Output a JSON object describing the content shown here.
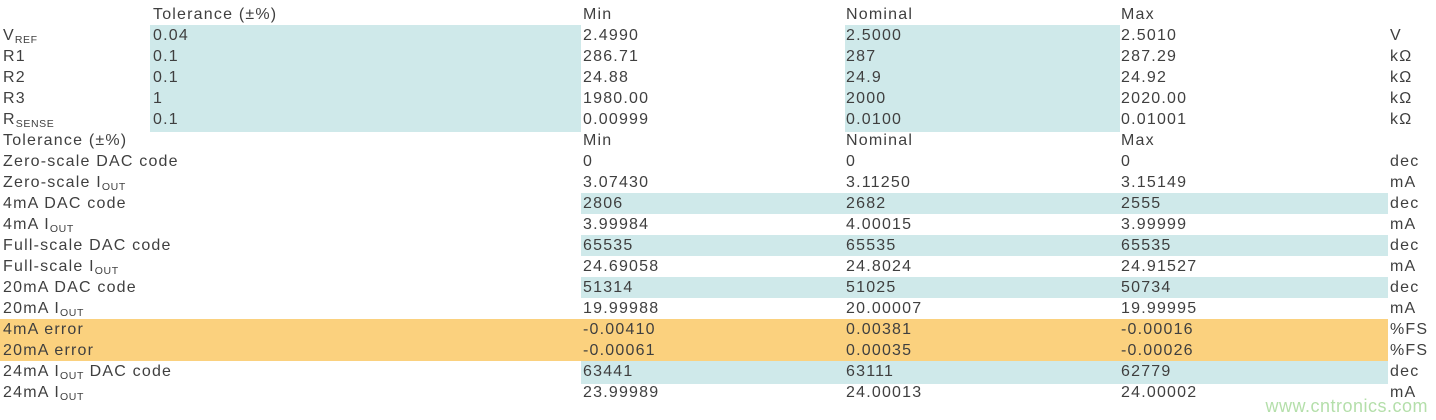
{
  "colors": {
    "highlight-blue": "#cfe9ea",
    "highlight-orange": "#fbd17e",
    "text": "#3f3f3f",
    "watermark-green": "#b4dfaa",
    "background": "#ffffff"
  },
  "watermark": "www.cntronics.com",
  "table": {
    "rows": [
      {
        "label": "",
        "tolerance": "Tolerance (±%)",
        "min": "Min",
        "nominal": "Nominal",
        "max": "Max",
        "unit": ""
      },
      {
        "label_pre": "V",
        "label_sub": "REF",
        "label_post": "",
        "tolerance": "0.04",
        "min": "2.4990",
        "nominal": "2.5000",
        "max": "2.5010",
        "unit": "V"
      },
      {
        "label": "R1",
        "tolerance": "0.1",
        "min": "286.71",
        "nominal": "287",
        "max": "287.29",
        "unit": "kΩ"
      },
      {
        "label": "R2",
        "tolerance": "0.1",
        "min": "24.88",
        "nominal": "24.9",
        "max": "24.92",
        "unit": "kΩ"
      },
      {
        "label": "R3",
        "tolerance": "1",
        "min": "1980.00",
        "nominal": "2000",
        "max": "2020.00",
        "unit": "kΩ"
      },
      {
        "label_pre": "R",
        "label_sub": "SENSE",
        "label_post": "",
        "tolerance": "0.1",
        "min": "0.00999",
        "nominal": "0.0100",
        "max": "0.01001",
        "unit": "kΩ"
      },
      {
        "label": "Tolerance (±%)",
        "tolerance": "",
        "min": "Min",
        "nominal": "Nominal",
        "max": "Max",
        "unit": ""
      },
      {
        "label": "Zero-scale DAC code",
        "tolerance": "",
        "min": "0",
        "nominal": "0",
        "max": "0",
        "unit": "dec"
      },
      {
        "label_pre": "Zero-scale I",
        "label_sub": "OUT",
        "label_post": "",
        "tolerance": "",
        "min": "3.07430",
        "nominal": "3.11250",
        "max": "3.15149",
        "unit": "mA"
      },
      {
        "label": "4mA DAC code",
        "tolerance": "",
        "min": "2806",
        "nominal": "2682",
        "max": "2555",
        "unit": "dec"
      },
      {
        "label_pre": "4mA I",
        "label_sub": "OUT",
        "label_post": "",
        "tolerance": "",
        "min": "3.99984",
        "nominal": "4.00015",
        "max": "3.99999",
        "unit": "mA"
      },
      {
        "label": "Full-scale DAC code",
        "tolerance": "",
        "min": "65535",
        "nominal": "65535",
        "max": "65535",
        "unit": "dec"
      },
      {
        "label_pre": "Full-scale I",
        "label_sub": "OUT",
        "label_post": "",
        "tolerance": "",
        "min": "24.69058",
        "nominal": "24.8024",
        "max": "24.91527",
        "unit": "mA"
      },
      {
        "label": "20mA DAC code",
        "tolerance": "",
        "min": "51314",
        "nominal": "51025",
        "max": "50734",
        "unit": "dec"
      },
      {
        "label_pre": "20mA I",
        "label_sub": "OUT",
        "label_post": "",
        "tolerance": "",
        "min": "19.99988",
        "nominal": "20.00007",
        "max": "19.99995",
        "unit": "mA"
      },
      {
        "label": "4mA error",
        "tolerance": "",
        "min": "-0.00410",
        "nominal": "0.00381",
        "max": "-0.00016",
        "unit": "%FS"
      },
      {
        "label": "20mA error",
        "tolerance": "",
        "min": "-0.00061",
        "nominal": "0.00035",
        "max": "-0.00026",
        "unit": "%FS"
      },
      {
        "label_pre": "24mA I",
        "label_sub": "OUT",
        "label_post": " DAC code",
        "tolerance": "",
        "min": "63441",
        "nominal": "63111",
        "max": "62779",
        "unit": "dec"
      },
      {
        "label_pre": "24mA I",
        "label_sub": "OUT",
        "label_post": "",
        "tolerance": "",
        "min": "23.99989",
        "nominal": "24.00013",
        "max": "24.00002",
        "unit": "mA"
      }
    ]
  }
}
